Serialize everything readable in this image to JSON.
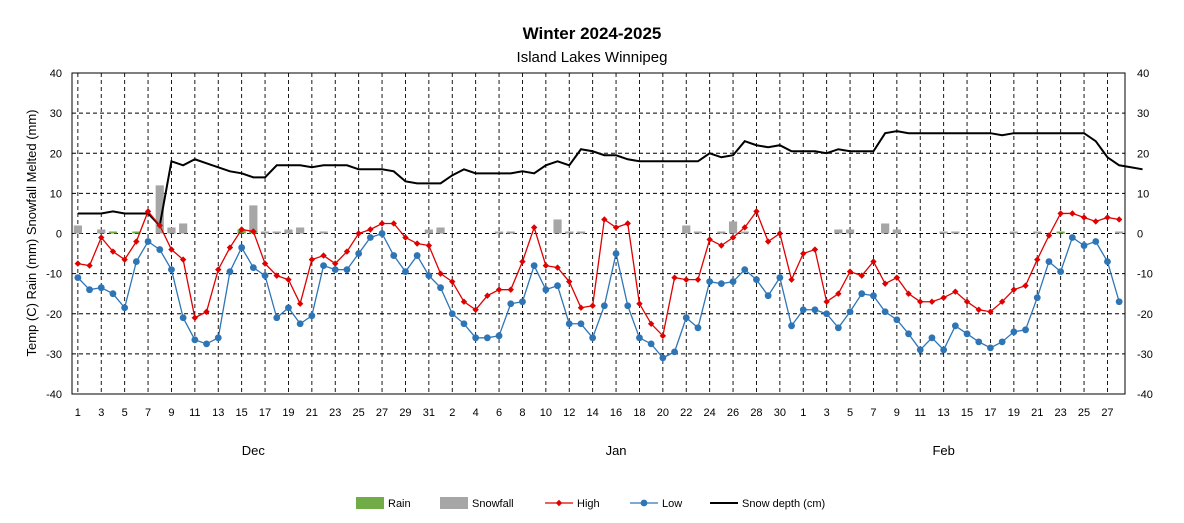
{
  "chart_data": {
    "type": "line",
    "title": "Winter 2024-2025",
    "subtitle": "Island Lakes Winnipeg",
    "ylabel": "Temp (C) Rain (mm) Snowfall Melted (mm)",
    "ylim": [
      -40,
      40
    ],
    "y2lim": [
      -40,
      40
    ],
    "yticks": [
      40,
      30,
      20,
      10,
      0,
      -10,
      -20,
      -30,
      -40
    ],
    "grid": true,
    "legend_position": "bottom",
    "x_tick_labels": [
      "1",
      "3",
      "5",
      "7",
      "9",
      "11",
      "13",
      "15",
      "17",
      "19",
      "21",
      "23",
      "25",
      "27",
      "29",
      "31",
      "2",
      "4",
      "6",
      "8",
      "10",
      "12",
      "14",
      "16",
      "18",
      "20",
      "22",
      "24",
      "26",
      "28",
      "30",
      "1",
      "3",
      "5",
      "7",
      "9",
      "11",
      "13",
      "15",
      "17",
      "19",
      "21",
      "23",
      "25",
      "27"
    ],
    "months": [
      "Dec",
      "Jan",
      "Feb"
    ],
    "legend": [
      "Rain",
      "Snowfall",
      "High",
      "Low",
      "Snow depth (cm)"
    ],
    "series": [
      {
        "name": "High",
        "color": "#e00000",
        "values": [
          -7.5,
          -8,
          -1,
          -4.5,
          -6.5,
          -2,
          5.5,
          2,
          -4,
          -6.5,
          -21,
          -19.5,
          -9,
          -3.5,
          1,
          0.5,
          -7.5,
          -10.5,
          -11.5,
          -17.5,
          -6.5,
          -5.5,
          -7.5,
          -4.5,
          0,
          1,
          2.5,
          2.5,
          -1,
          -2.5,
          -3,
          -10,
          -12,
          -17,
          -19,
          -15.5,
          -14,
          -14,
          -7,
          1.5,
          -8,
          -8.5,
          -12,
          -18.5,
          -18,
          3.5,
          1.5,
          2.5,
          -17.5,
          -22.5,
          -25.5,
          -11,
          -11.5,
          -11.5,
          -1.5,
          -3,
          -1,
          1.5,
          5.5,
          -2,
          0,
          -11.5,
          -5,
          -4,
          -17,
          -15,
          -9.5,
          -10.5,
          -7,
          -12.5,
          -11,
          -15,
          -17,
          -17,
          -16,
          -14.5,
          -17,
          -19,
          -19.5,
          -17,
          -14,
          -13,
          -6.5,
          -0.5,
          5,
          5,
          4,
          3,
          4,
          3.5
        ]
      },
      {
        "name": "Low",
        "color": "#2e75b6",
        "values": [
          -11,
          -14,
          -13.5,
          -15,
          -18.5,
          -7,
          -2,
          -4,
          -9,
          -21,
          -26.5,
          -27.5,
          -26,
          -9.5,
          -3.5,
          -8.5,
          -10.5,
          -21,
          -18.5,
          -22.5,
          -20.5,
          -8,
          -9,
          -9,
          -5,
          -1,
          0,
          -5.5,
          -9.5,
          -5.5,
          -10.5,
          -13.5,
          -20,
          -22.5,
          -26,
          -26,
          -25.5,
          -17.5,
          -17,
          -8,
          -14,
          -13,
          -22.5,
          -22.5,
          -26,
          -18,
          -5,
          -18,
          -26,
          -27.5,
          -31,
          -29.5,
          -21,
          -23.5,
          -12,
          -12.5,
          -12,
          -9,
          -11.5,
          -15.5,
          -11,
          -23,
          -19,
          -19,
          -20,
          -23.5,
          -19.5,
          -15,
          -15.5,
          -19.5,
          -21.5,
          -25,
          -29,
          -26,
          -29,
          -23,
          -25,
          -27,
          -28.5,
          -27,
          -24.5,
          -24,
          -16,
          -7,
          -9.5,
          -1,
          -3,
          -2,
          -7,
          -17
        ]
      },
      {
        "name": "Snow depth (cm)",
        "color": "#000000",
        "values": [
          5,
          5,
          5,
          5.5,
          5,
          5,
          5,
          2,
          18,
          17,
          18.5,
          17.5,
          16.5,
          15.5,
          15,
          14,
          14,
          17,
          17,
          17,
          16.5,
          17,
          17,
          17,
          16,
          16,
          16,
          15.5,
          13,
          12.5,
          12.5,
          12.5,
          14.5,
          16,
          15,
          15,
          15,
          15,
          15.5,
          15,
          17,
          18,
          17,
          21,
          20.5,
          19.5,
          19.5,
          18.5,
          18,
          18,
          18,
          18,
          18,
          18,
          20,
          19,
          19.5,
          23,
          22,
          21.5,
          22,
          20.5,
          20.5,
          20.5,
          20,
          21,
          20.5,
          20.5,
          20.5,
          25,
          25.5,
          25,
          25,
          25,
          25,
          25,
          25,
          25,
          25,
          24.5,
          25,
          25,
          25,
          25,
          25,
          25,
          25,
          23,
          19,
          17,
          16.5,
          16
        ]
      },
      {
        "name": "Snowfall",
        "color": "#a6a6a6",
        "values": [
          2,
          0,
          1,
          0,
          0,
          0,
          0,
          12,
          1.5,
          2.5,
          0,
          0,
          0,
          0,
          1,
          7,
          0.5,
          0.5,
          1,
          1.5,
          0,
          0.5,
          0,
          0,
          0,
          0,
          0,
          0,
          0,
          0,
          1,
          1.5,
          0,
          0,
          0,
          0,
          0.5,
          0.5,
          0,
          0,
          0,
          3.5,
          0.5,
          0.5,
          0,
          0,
          0,
          0,
          0,
          0,
          0,
          0,
          2,
          0.5,
          0,
          0.5,
          3,
          0.5,
          0,
          0,
          0,
          0,
          0,
          0,
          0,
          1,
          1,
          0,
          0,
          2.5,
          1,
          0,
          0,
          0,
          0.5,
          0.5,
          0,
          0,
          0,
          0,
          0.5,
          0,
          0.5,
          0,
          0,
          0,
          0,
          0,
          0,
          0.5
        ]
      },
      {
        "name": "Rain",
        "color": "#70ad47",
        "values": [
          0,
          0,
          0,
          0.5,
          0,
          0.5,
          0,
          0,
          0,
          0,
          0,
          0,
          0,
          0,
          1,
          0.5,
          0,
          0,
          0,
          0,
          0,
          0,
          0,
          0,
          0,
          0,
          0,
          0,
          0,
          0,
          0,
          0,
          0,
          0,
          0,
          0,
          0,
          0,
          0,
          0,
          0,
          0,
          0,
          0,
          0,
          0,
          0,
          0,
          0,
          0,
          0,
          0,
          0,
          0,
          0,
          0,
          0,
          0,
          0,
          0,
          0,
          0,
          0,
          0,
          0,
          0,
          0,
          0,
          0,
          0,
          0,
          0,
          0,
          0,
          0,
          0,
          0,
          0,
          0,
          0,
          0,
          0,
          0,
          0,
          0.5,
          0,
          0,
          0,
          0,
          0
        ]
      }
    ]
  }
}
